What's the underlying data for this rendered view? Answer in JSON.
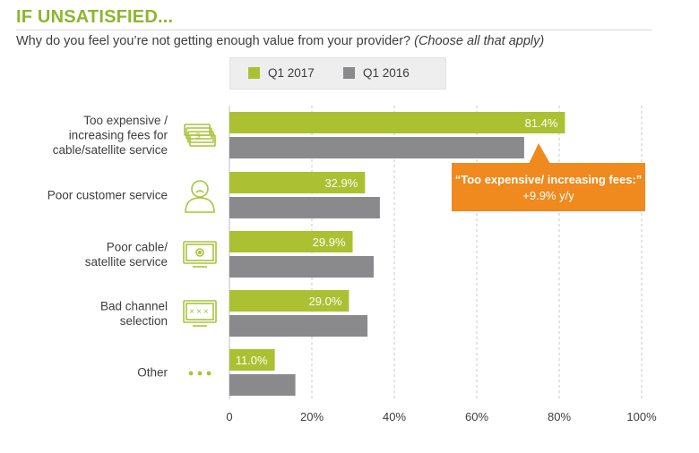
{
  "header": {
    "title": "IF UNSATISFIED...",
    "question": "Why do you feel you’re not getting enough value from your provider?",
    "question_note": "(Choose all that apply)"
  },
  "callout": {
    "line1": "“Too expensive/ increasing fees:”",
    "line2": "+9.9% y/y"
  },
  "colors": {
    "q1_2017": "#abc132",
    "q1_2016": "#8a8a8d",
    "title": "#8db62f",
    "callout": "#f0891e",
    "icon": "#a9c43b"
  },
  "chart_data": {
    "type": "bar",
    "orientation": "horizontal",
    "categories": [
      [
        "Too expensive /",
        "increasing fees for",
        "cable/satellite service"
      ],
      [
        "Poor customer service"
      ],
      [
        "Poor cable/",
        "satellite service"
      ],
      [
        "Bad channel",
        "selection"
      ],
      [
        "Other"
      ]
    ],
    "category_icons": [
      "money-stack-icon",
      "person-icon",
      "tv-gear-icon",
      "tv-channel-icon",
      "ellipsis-icon"
    ],
    "series": [
      {
        "name": "Q1 2017",
        "values": [
          81.4,
          32.9,
          29.9,
          29.0,
          11.0
        ],
        "labels": [
          "81.4%",
          "32.9%",
          "29.9%",
          "29.0%",
          "11.0%"
        ]
      },
      {
        "name": "Q1 2016",
        "values": [
          71.5,
          36.5,
          35.0,
          33.5,
          16.0
        ]
      }
    ],
    "xlim": [
      0,
      100
    ],
    "xticks": [
      0,
      20,
      40,
      60,
      80,
      100
    ],
    "xtick_labels": [
      "0",
      "20%",
      "40%",
      "60%",
      "80%",
      "100%"
    ],
    "grid": "vertical dashed",
    "legend": "top"
  }
}
